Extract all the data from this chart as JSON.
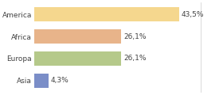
{
  "categories": [
    "America",
    "Africa",
    "Europa",
    "Asia"
  ],
  "values": [
    43.5,
    26.1,
    26.1,
    4.3
  ],
  "labels": [
    "43,5%",
    "26,1%",
    "26,1%",
    "4,3%"
  ],
  "bar_colors": [
    "#f5d78e",
    "#e8b48a",
    "#b5c98a",
    "#7b8ec8"
  ],
  "background_color": "#ffffff",
  "xlim": [
    0,
    56
  ],
  "bar_height": 0.62,
  "text_fontsize": 6.5,
  "label_fontsize": 6.5,
  "figsize": [
    2.8,
    1.2
  ],
  "dpi": 100
}
